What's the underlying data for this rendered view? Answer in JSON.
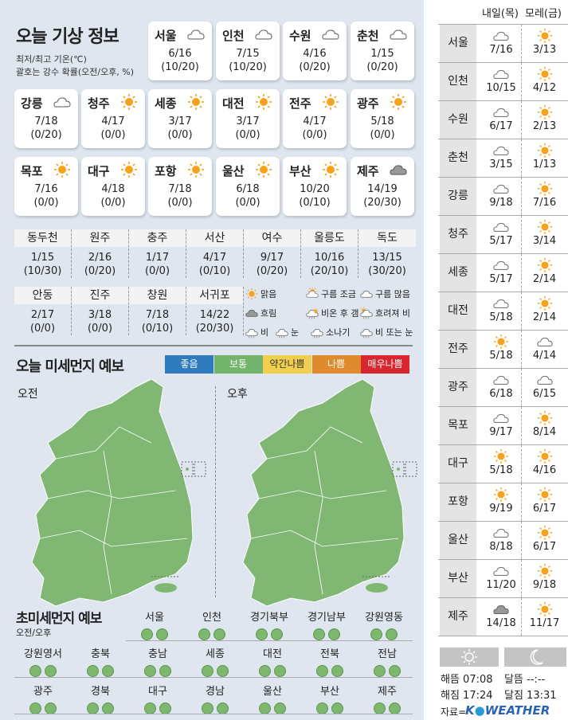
{
  "title": "오늘 기상 정보",
  "subtitle1": "최저/최고 기온(℃)",
  "subtitle2": "괄호는 강수 확률(오전/오후, %)",
  "cards": [
    {
      "name": "서울",
      "icon": "cloud",
      "temp": "6/16",
      "rain": "(10/20)"
    },
    {
      "name": "인천",
      "icon": "cloud",
      "temp": "7/15",
      "rain": "(10/20)"
    },
    {
      "name": "수원",
      "icon": "cloud",
      "temp": "4/16",
      "rain": "(0/20)"
    },
    {
      "name": "춘천",
      "icon": "cloud",
      "temp": "1/15",
      "rain": "(0/20)"
    },
    {
      "name": "강릉",
      "icon": "cloud",
      "temp": "7/18",
      "rain": "(0/20)"
    },
    {
      "name": "청주",
      "icon": "sun",
      "temp": "4/17",
      "rain": "(0/0)"
    },
    {
      "name": "세종",
      "icon": "sun",
      "temp": "3/17",
      "rain": "(0/0)"
    },
    {
      "name": "대전",
      "icon": "sun",
      "temp": "3/17",
      "rain": "(0/0)"
    },
    {
      "name": "전주",
      "icon": "sun",
      "temp": "4/17",
      "rain": "(0/0)"
    },
    {
      "name": "광주",
      "icon": "sun",
      "temp": "5/18",
      "rain": "(0/0)"
    },
    {
      "name": "목포",
      "icon": "sun",
      "temp": "7/16",
      "rain": "(0/0)"
    },
    {
      "name": "대구",
      "icon": "sun",
      "temp": "4/18",
      "rain": "(0/0)"
    },
    {
      "name": "포항",
      "icon": "sun",
      "temp": "7/18",
      "rain": "(0/0)"
    },
    {
      "name": "울산",
      "icon": "sun",
      "temp": "6/18",
      "rain": "(0/0)"
    },
    {
      "name": "부산",
      "icon": "sun",
      "temp": "10/20",
      "rain": "(0/10)"
    },
    {
      "name": "제주",
      "icon": "dark-cloud",
      "temp": "14/19",
      "rain": "(20/30)"
    }
  ],
  "small_cities": [
    {
      "name": "동두천",
      "temp": "1/15",
      "rain": "(10/30)"
    },
    {
      "name": "원주",
      "temp": "2/16",
      "rain": "(0/20)"
    },
    {
      "name": "충주",
      "temp": "1/17",
      "rain": "(0/0)"
    },
    {
      "name": "서산",
      "temp": "4/17",
      "rain": "(0/10)"
    },
    {
      "name": "여수",
      "temp": "9/17",
      "rain": "(0/20)"
    },
    {
      "name": "울릉도",
      "temp": "10/16",
      "rain": "(20/10)"
    },
    {
      "name": "독도",
      "temp": "13/15",
      "rain": "(30/20)"
    },
    {
      "name": "안동",
      "temp": "2/17",
      "rain": "(0/0)"
    },
    {
      "name": "진주",
      "temp": "3/18",
      "rain": "(0/0)"
    },
    {
      "name": "창원",
      "temp": "7/18",
      "rain": "(0/10)"
    },
    {
      "name": "서귀포",
      "temp": "14/22",
      "rain": "(20/30)"
    }
  ],
  "legend": [
    {
      "icon": "sun",
      "label": "맑음"
    },
    {
      "icon": "partly-cloudy",
      "label": "구름 조금"
    },
    {
      "icon": "cloud",
      "label": "구름 많음"
    },
    {
      "icon": "dark-cloud",
      "label": "흐림"
    },
    {
      "icon": "rain-then-clear",
      "label": "비온 후 갬"
    },
    {
      "icon": "clear-then-rain",
      "label": "흐려져 비"
    },
    {
      "icon": "rain",
      "label": "비"
    },
    {
      "icon": "snow",
      "label": "눈"
    },
    {
      "icon": "shower",
      "label": "소나기"
    },
    {
      "icon": "rain-or-snow",
      "label": "비 또는 눈"
    }
  ],
  "dust": {
    "title": "오늘 미세먼지 예보",
    "levels": [
      {
        "label": "좋음",
        "color": "#2f7bbd"
      },
      {
        "label": "보통",
        "color": "#72b46c"
      },
      {
        "label": "약간나쁨",
        "color": "#f0cf4f"
      },
      {
        "label": "나쁨",
        "color": "#df8a2d"
      },
      {
        "label": "매우나쁨",
        "color": "#d7262f"
      }
    ],
    "am_label": "오전",
    "pm_label": "오후",
    "map_color": "#80b873"
  },
  "ultrafine": {
    "title": "초미세먼지 예보",
    "subtitle": "오전/오후",
    "regions": [
      "서울",
      "인천",
      "경기북부",
      "경기남부",
      "강원영동",
      "강원영서",
      "충북",
      "충남",
      "세종",
      "대전",
      "전북",
      "전남",
      "광주",
      "경북",
      "대구",
      "경남",
      "울산",
      "부산",
      "제주"
    ]
  },
  "forecast": {
    "day1": "내일(목)",
    "day2": "모레(금)",
    "rows": [
      {
        "city": "서울",
        "i1": "cloud",
        "t1": "7/16",
        "i2": "sun",
        "t2": "3/13"
      },
      {
        "city": "인천",
        "i1": "cloud",
        "t1": "10/15",
        "i2": "sun",
        "t2": "4/12"
      },
      {
        "city": "수원",
        "i1": "cloud",
        "t1": "6/17",
        "i2": "sun",
        "t2": "2/13"
      },
      {
        "city": "춘천",
        "i1": "cloud",
        "t1": "3/15",
        "i2": "sun",
        "t2": "1/13"
      },
      {
        "city": "강릉",
        "i1": "cloud",
        "t1": "9/18",
        "i2": "sun",
        "t2": "7/16"
      },
      {
        "city": "청주",
        "i1": "cloud",
        "t1": "5/17",
        "i2": "sun",
        "t2": "3/14"
      },
      {
        "city": "세종",
        "i1": "cloud",
        "t1": "5/17",
        "i2": "sun",
        "t2": "2/14"
      },
      {
        "city": "대전",
        "i1": "cloud",
        "t1": "5/18",
        "i2": "sun",
        "t2": "2/14"
      },
      {
        "city": "전주",
        "i1": "sun",
        "t1": "5/18",
        "i2": "cloud",
        "t2": "4/14"
      },
      {
        "city": "광주",
        "i1": "cloud",
        "t1": "6/18",
        "i2": "cloud",
        "t2": "6/15"
      },
      {
        "city": "목포",
        "i1": "cloud",
        "t1": "9/17",
        "i2": "sun",
        "t2": "8/14"
      },
      {
        "city": "대구",
        "i1": "sun",
        "t1": "5/18",
        "i2": "sun",
        "t2": "4/16"
      },
      {
        "city": "포항",
        "i1": "sun",
        "t1": "9/19",
        "i2": "sun",
        "t2": "6/17"
      },
      {
        "city": "울산",
        "i1": "cloud",
        "t1": "8/18",
        "i2": "sun",
        "t2": "6/17"
      },
      {
        "city": "부산",
        "i1": "cloud",
        "t1": "11/20",
        "i2": "sun",
        "t2": "9/18"
      },
      {
        "city": "제주",
        "i1": "dark-cloud",
        "t1": "14/18",
        "i2": "sun",
        "t2": "11/17"
      }
    ]
  },
  "sun_moon": {
    "sunrise": "해뜸 07:08",
    "sunset": "해짐 17:24",
    "moonrise": "달뜸 --:--",
    "moonset": "달짐 13:31"
  },
  "source_label": "자료=",
  "source_logo": "K WEATHER"
}
